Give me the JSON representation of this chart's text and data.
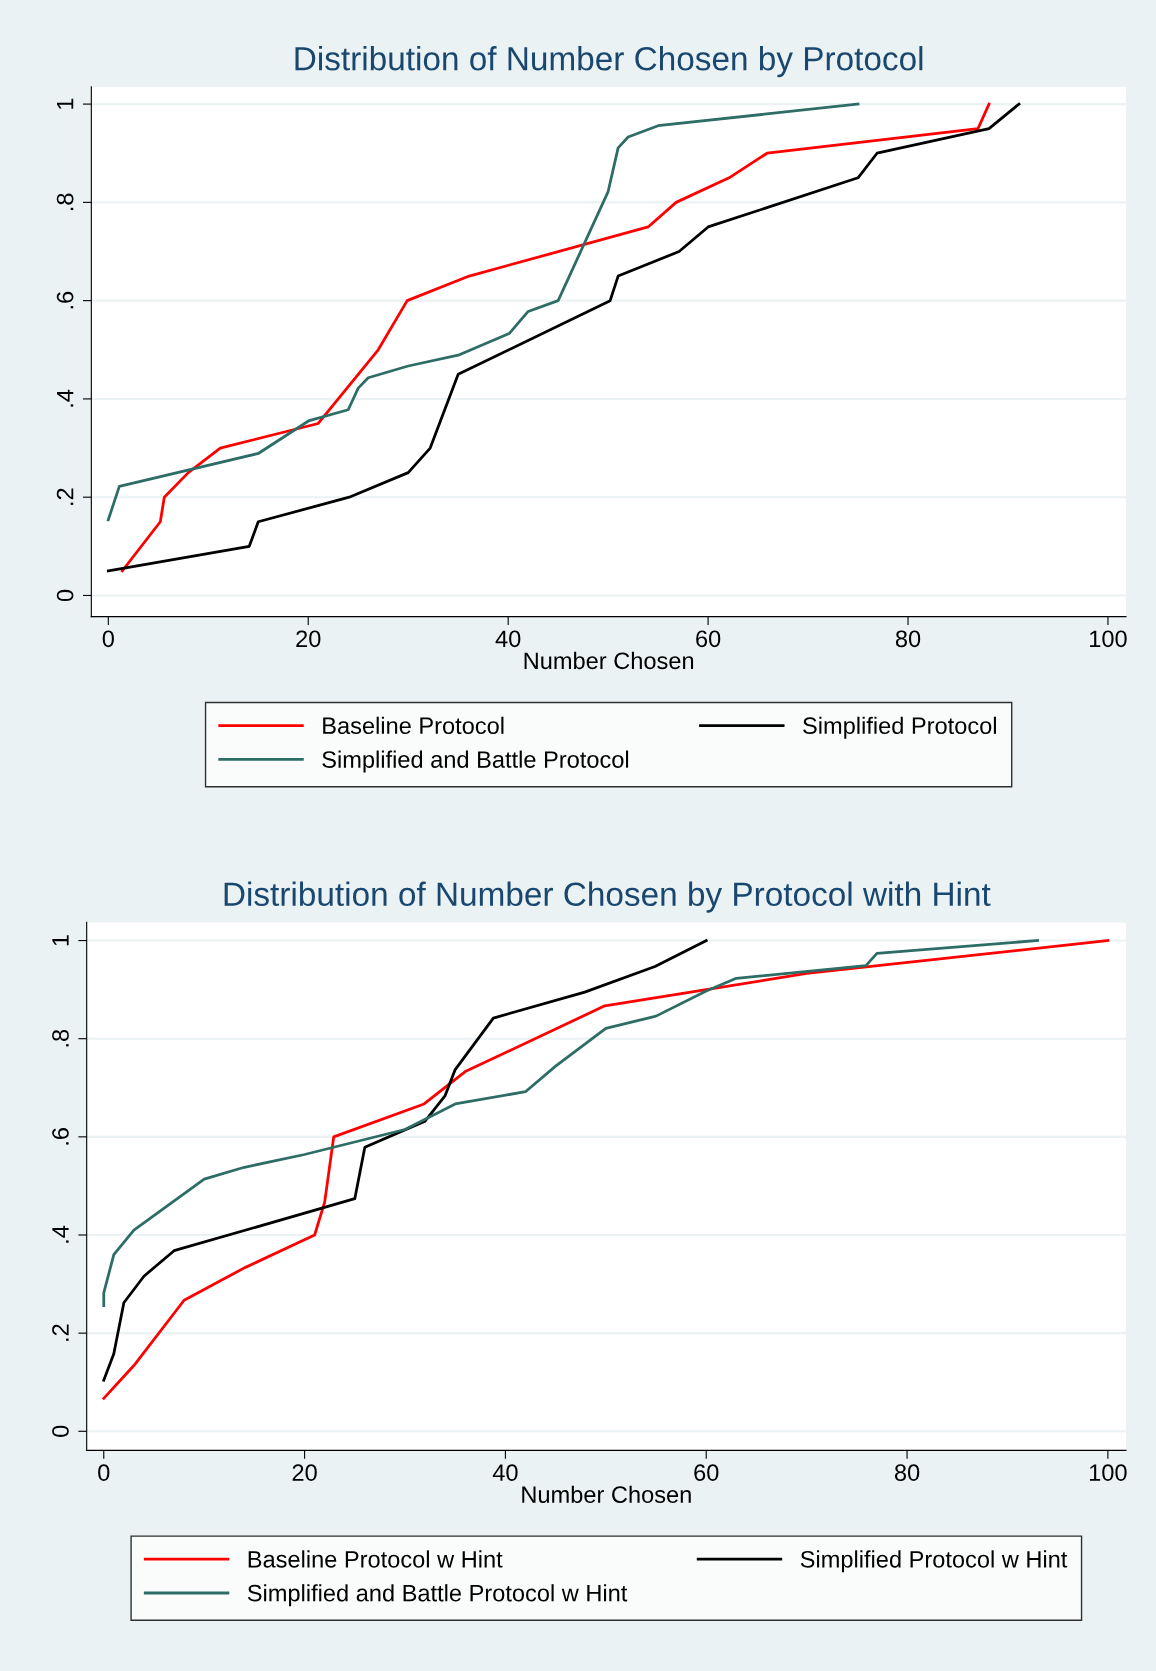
{
  "chart_data": [
    {
      "type": "line",
      "title": "Distribution of Number Chosen by Protocol",
      "xlabel": "Number Chosen",
      "xlim": [
        -1.7,
        101.8
      ],
      "xticks": [
        0,
        20,
        40,
        60,
        80,
        100
      ],
      "ylim": [
        -0.043,
        1.035
      ],
      "yticks": [
        0,
        {
          "value": 0.2,
          "label": ".2"
        },
        {
          "value": 0.4,
          "label": ".4"
        },
        {
          "value": 0.6,
          "label": ".6"
        },
        {
          "value": 0.8,
          "label": ".8"
        },
        1
      ],
      "grid": "y",
      "legend": "bottom",
      "series": [
        {
          "name": "Baseline Protocol",
          "color": "#ff0000",
          "x": [
            1.4,
            5.2,
            5.6,
            8,
            11.2,
            21,
            27,
            29.9,
            36.1,
            54,
            56.8,
            62.1,
            65.9,
            87,
            88.1
          ],
          "values": [
            0.05,
            0.15,
            0.2,
            0.25,
            0.3,
            0.35,
            0.5,
            0.6,
            0.65,
            0.75,
            0.8,
            0.85,
            0.9,
            0.95,
            1
          ]
        },
        {
          "name": "Simplified Protocol",
          "color": "#000000",
          "x": [
            0,
            14.1,
            15,
            24.1,
            30,
            32.2,
            35,
            50.2,
            51,
            57.1,
            60,
            75,
            76.9,
            88.1,
            91.1
          ],
          "values": [
            0.05,
            0.1,
            0.15,
            0.2,
            0.25,
            0.3,
            0.45,
            0.6,
            0.65,
            0.7,
            0.75,
            0.85,
            0.9,
            0.95,
            1
          ]
        },
        {
          "name": "Simplified and Battle Protocol",
          "color": "#2d6d66",
          "x": [
            0,
            1.1,
            15,
            20.1,
            24,
            25,
            26,
            30,
            35,
            40.1,
            42,
            45,
            50,
            51,
            52,
            55,
            75
          ],
          "values": [
            0.154,
            0.222,
            0.289,
            0.356,
            0.378,
            0.422,
            0.443,
            0.467,
            0.489,
            0.533,
            0.578,
            0.6,
            0.822,
            0.911,
            0.933,
            0.956,
            1
          ]
        }
      ]
    },
    {
      "type": "line",
      "title": "Distribution of Number Chosen by Protocol with Hint",
      "xlabel": "Number Chosen",
      "xlim": [
        -1.7,
        101.8
      ],
      "xticks": [
        0,
        20,
        40,
        60,
        80,
        100
      ],
      "ylim": [
        -0.039,
        1.037
      ],
      "yticks": [
        0,
        {
          "value": 0.2,
          "label": ".2"
        },
        {
          "value": 0.4,
          "label": ".4"
        },
        {
          "value": 0.6,
          "label": ".6"
        },
        {
          "value": 0.8,
          "label": ".8"
        },
        1
      ],
      "grid": "y",
      "legend": "bottom",
      "series": [
        {
          "name": "Baseline Protocol w Hint",
          "color": "#ff0000",
          "x": [
            0,
            3,
            8,
            14,
            21,
            22,
            22.9,
            31.9,
            36,
            49.9,
            60,
            70,
            100
          ],
          "values": [
            0.067,
            0.134,
            0.267,
            0.333,
            0.4,
            0.467,
            0.6,
            0.667,
            0.733,
            0.867,
            0.9,
            0.933,
            1
          ]
        },
        {
          "name": "Simplified Protocol w Hint",
          "color": "#000000",
          "x": [
            0,
            1,
            2,
            4,
            7,
            25,
            26,
            32,
            34,
            35,
            38.8,
            47.9,
            54.9,
            60
          ],
          "values": [
            0.104,
            0.158,
            0.262,
            0.316,
            0.368,
            0.474,
            0.579,
            0.632,
            0.684,
            0.737,
            0.842,
            0.895,
            0.947,
            1
          ]
        },
        {
          "name": "Simplified and Battle Protocol w Hint",
          "color": "#2d6d66",
          "x": [
            0,
            0,
            1,
            3,
            10,
            14,
            20,
            30,
            35,
            42,
            45,
            50,
            55,
            60,
            63,
            75.9,
            77,
            93
          ],
          "values": [
            0.256,
            0.282,
            0.36,
            0.41,
            0.514,
            0.538,
            0.564,
            0.615,
            0.667,
            0.692,
            0.744,
            0.821,
            0.846,
            0.897,
            0.923,
            0.949,
            0.974,
            1
          ]
        }
      ]
    }
  ]
}
